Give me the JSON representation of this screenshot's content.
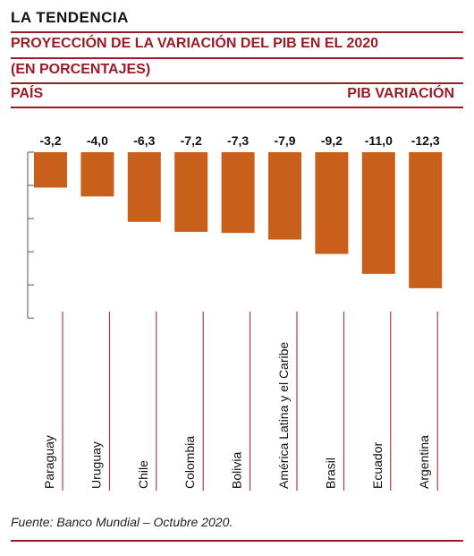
{
  "header": {
    "title": "LA TENDENCIA",
    "subtitle": "PROYECCIÓN DE LA VARIACIÓN DEL PIB EN EL 2020",
    "unit": "(EN PORCENTAJES)",
    "col_left": "PAÍS",
    "col_right": "PIB VARIACIÓN"
  },
  "colors": {
    "bar": "#c8601c",
    "accent": "#9b1c26",
    "axis": "#555555"
  },
  "chart_data": {
    "type": "bar",
    "categories": [
      "Paraguay",
      "Uruguay",
      "Chile",
      "Colombia",
      "Bolivia",
      "América Latina y el Caribe",
      "Brasil",
      "Ecuador",
      "Argentina"
    ],
    "values": [
      -3.2,
      -4.0,
      -6.3,
      -7.2,
      -7.3,
      -7.9,
      -9.2,
      -11.0,
      -12.3
    ],
    "value_labels": [
      "-3,2",
      "-4,0",
      "-6,3",
      "-7,2",
      "-7,3",
      "-7,9",
      "-9,2",
      "-11,0",
      "-12,3"
    ],
    "ylim": [
      -15,
      0
    ],
    "grid": false
  },
  "source": "Fuente: Banco Mundial – Octubre 2020."
}
